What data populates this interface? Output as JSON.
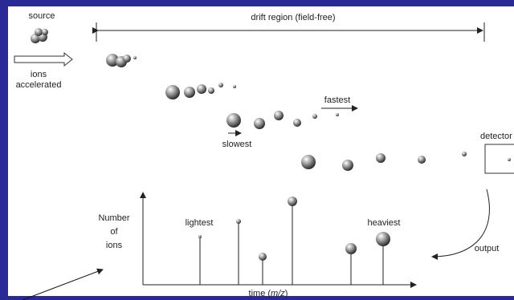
{
  "source": "source",
  "ions_accelerated": [
    "ions",
    "accelerated"
  ],
  "drift_region": "drift region (field-free)",
  "fastest": "fastest",
  "slowest": "slowest",
  "detector": "detector",
  "y_axis_label": [
    "Number",
    "of",
    "ions"
  ],
  "lightest": "lightest",
  "heaviest": "heaviest",
  "output": "output",
  "x_axis_label": {
    "prefix": "time (",
    "italic": "m/z",
    "suffix": ")"
  }
}
